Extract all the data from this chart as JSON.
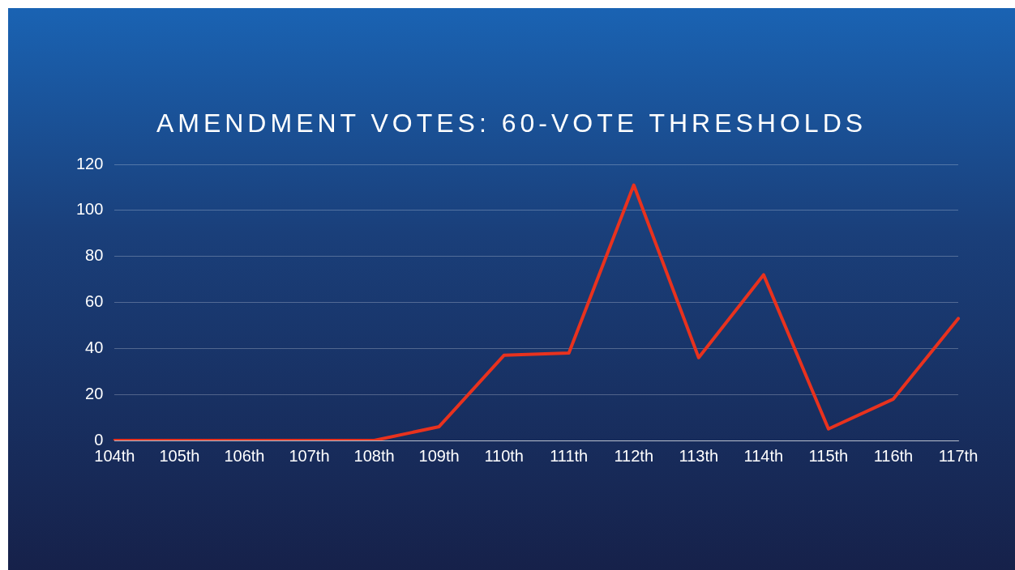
{
  "chart_data": {
    "type": "line",
    "title": "AMENDMENT VOTES: 60-VOTE THRESHOLDS",
    "categories": [
      "104th",
      "105th",
      "106th",
      "107th",
      "108th",
      "109th",
      "110th",
      "111th",
      "112th",
      "113th",
      "114th",
      "115th",
      "116th",
      "117th"
    ],
    "series": [
      {
        "color": "#e8321e",
        "values": [
          0,
          0,
          0,
          0,
          0,
          6,
          37,
          38,
          111,
          36,
          72,
          5,
          18,
          53
        ]
      }
    ],
    "ylim": [
      0,
      120
    ],
    "yticks": [
      0,
      20,
      40,
      60,
      80,
      100,
      120
    ],
    "grid": "y",
    "legend": false,
    "marker": "none",
    "line_style": "solid"
  }
}
